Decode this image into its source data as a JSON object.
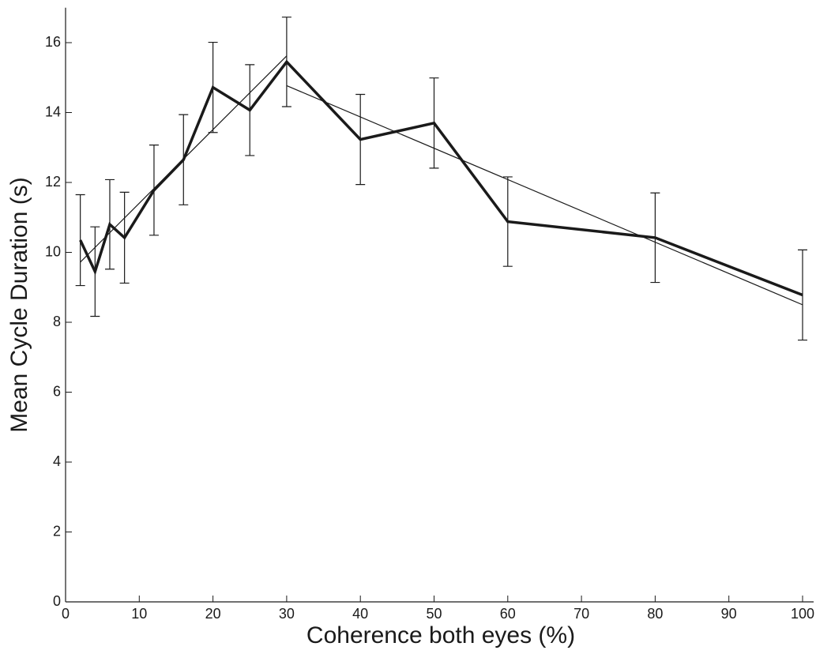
{
  "chart_data": {
    "type": "line",
    "xlabel": "Coherence both eyes (%)",
    "ylabel": "Mean Cycle Duration (s)",
    "x": [
      2,
      4,
      6,
      8,
      12,
      16,
      20,
      25,
      30,
      40,
      50,
      60,
      80,
      100
    ],
    "values": [
      10.35,
      9.45,
      10.8,
      10.42,
      11.78,
      12.65,
      14.72,
      14.07,
      15.45,
      13.23,
      13.7,
      10.88,
      10.42,
      8.78
    ],
    "errors": [
      1.3,
      1.28,
      1.28,
      1.3,
      1.29,
      1.29,
      1.29,
      1.3,
      1.28,
      1.29,
      1.29,
      1.28,
      1.28,
      1.29
    ],
    "color": "#1a1a1a",
    "fits": [
      {
        "x": [
          2,
          30
        ],
        "y": [
          9.72,
          15.62
        ]
      },
      {
        "x": [
          30,
          100
        ],
        "y": [
          14.77,
          8.5
        ]
      }
    ],
    "fit_color": "#1a1a1a",
    "xlim": [
      0,
      101.5
    ],
    "xticks": [
      0,
      10,
      20,
      30,
      40,
      50,
      60,
      70,
      80,
      90,
      100
    ],
    "ylim": [
      0,
      17
    ],
    "yticks": [
      0,
      2,
      4,
      6,
      8,
      10,
      12,
      14,
      16
    ]
  }
}
